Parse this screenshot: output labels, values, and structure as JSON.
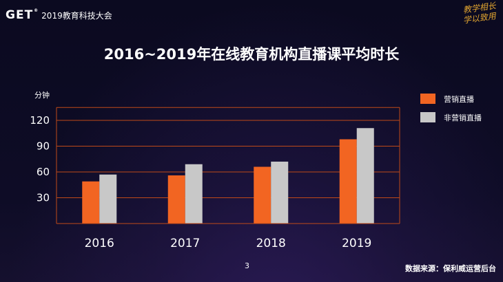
{
  "header": {
    "logo_mark": "GET",
    "logo_mark_sup": "®",
    "logo_text": "2019教育科技大会",
    "slogan_line1": "教学相长",
    "slogan_line2": "学以致用"
  },
  "footer": {
    "page_number": "3",
    "source": "数据来源：保利威运营后台"
  },
  "colors": {
    "marketing": "#f26522",
    "non_marketing": "#c8c8c8",
    "grid": "#c04a18"
  },
  "chart_data": {
    "type": "bar",
    "title": "2016~2019年在线教育机构直播课平均时长",
    "ylabel": "分钟",
    "xlabel": "",
    "categories": [
      "2016",
      "2017",
      "2018",
      "2019"
    ],
    "ylim": [
      0,
      135
    ],
    "yticks": [
      30,
      60,
      90,
      120
    ],
    "grid": true,
    "legend_position": "right",
    "series": [
      {
        "name": "营销直播",
        "values": [
          49,
          56,
          66,
          98
        ]
      },
      {
        "name": "非营销直播",
        "values": [
          57,
          69,
          72,
          111
        ]
      }
    ]
  }
}
